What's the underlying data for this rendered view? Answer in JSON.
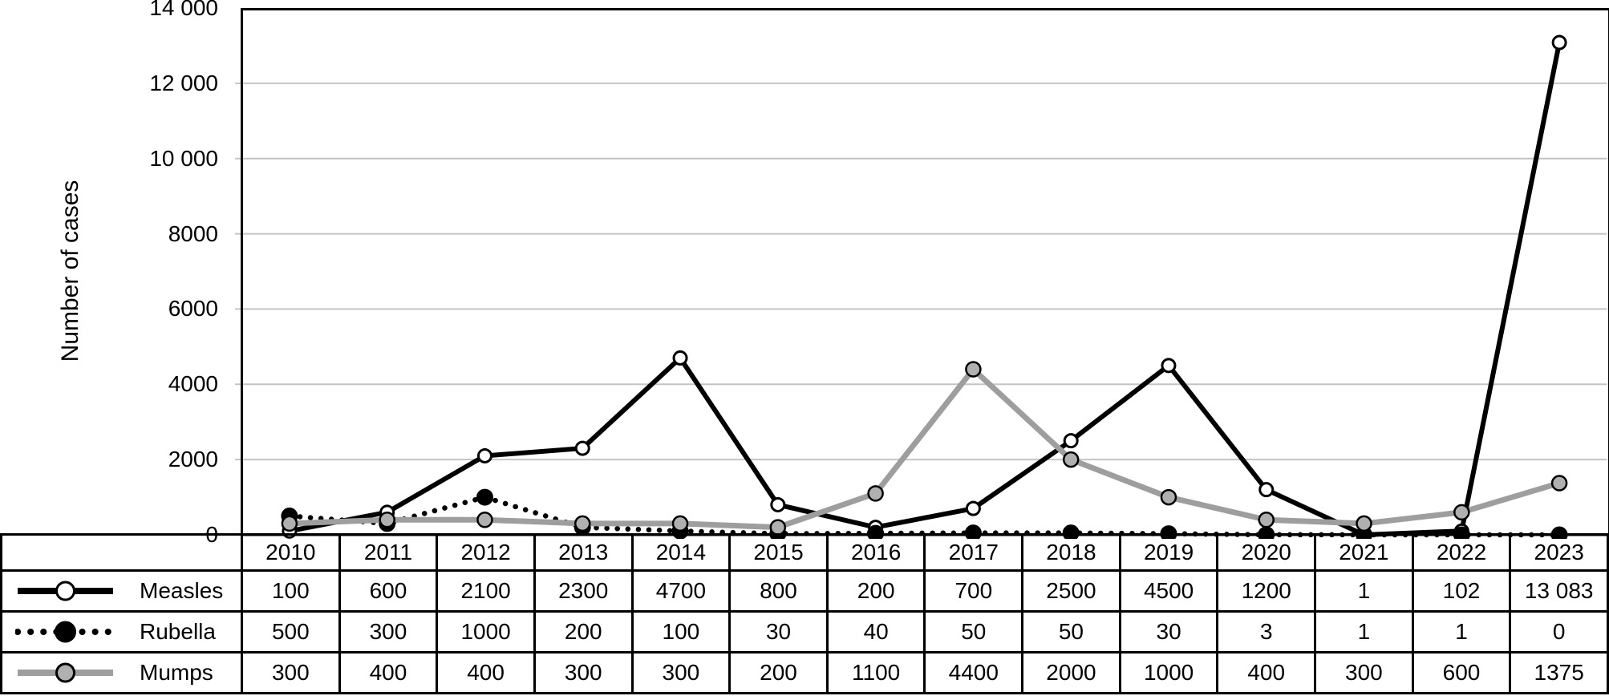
{
  "figure": {
    "y_axis_title": "Number of cases",
    "y_tick_labels": [
      "14 000",
      "12 000",
      "10 000",
      "8000",
      "6000",
      "4000",
      "2000",
      "0"
    ],
    "y_tick_values": [
      14000,
      12000,
      10000,
      8000,
      6000,
      4000,
      2000,
      0
    ]
  },
  "chart_data": {
    "type": "line",
    "title": "",
    "xlabel": "",
    "ylabel": "Number of cases",
    "ylim": [
      0,
      14000
    ],
    "grid": "horizontal-only",
    "legend_position": "left-column-of-data-table",
    "categories": [
      "2010",
      "2011",
      "2012",
      "2013",
      "2014",
      "2015",
      "2016",
      "2017",
      "2018",
      "2019",
      "2020",
      "2021",
      "2022",
      "2023"
    ],
    "series": [
      {
        "name": "Measles",
        "line_style": "solid",
        "line_color": "#000000",
        "marker_fill": "#ffffff",
        "marker_stroke": "#000000",
        "values": [
          100,
          600,
          2100,
          2300,
          4700,
          800,
          200,
          700,
          2500,
          4500,
          1200,
          1,
          102,
          13083
        ],
        "display_values": [
          "100",
          "600",
          "2100",
          "2300",
          "4700",
          "800",
          "200",
          "700",
          "2500",
          "4500",
          "1200",
          "1",
          "102",
          "13 083"
        ]
      },
      {
        "name": "Rubella",
        "line_style": "dotted",
        "line_color": "#000000",
        "marker_fill": "#000000",
        "marker_stroke": "#000000",
        "values": [
          500,
          300,
          1000,
          200,
          100,
          30,
          40,
          50,
          50,
          30,
          3,
          1,
          1,
          0
        ],
        "display_values": [
          "500",
          "300",
          "1000",
          "200",
          "100",
          "30",
          "40",
          "50",
          "50",
          "30",
          "3",
          "1",
          "1",
          "0"
        ]
      },
      {
        "name": "Mumps",
        "line_style": "solid",
        "line_color": "#9e9e9e",
        "marker_fill": "#b0b0b0",
        "marker_stroke": "#000000",
        "values": [
          300,
          400,
          400,
          300,
          300,
          200,
          1100,
          4400,
          2000,
          1000,
          400,
          300,
          600,
          1375
        ],
        "display_values": [
          "300",
          "400",
          "400",
          "300",
          "300",
          "200",
          "1100",
          "4400",
          "2000",
          "1000",
          "400",
          "300",
          "600",
          "1375"
        ]
      }
    ]
  },
  "colors": {
    "background": "#ffffff",
    "axis": "#000000",
    "grid_line": "#c4c4c4"
  }
}
